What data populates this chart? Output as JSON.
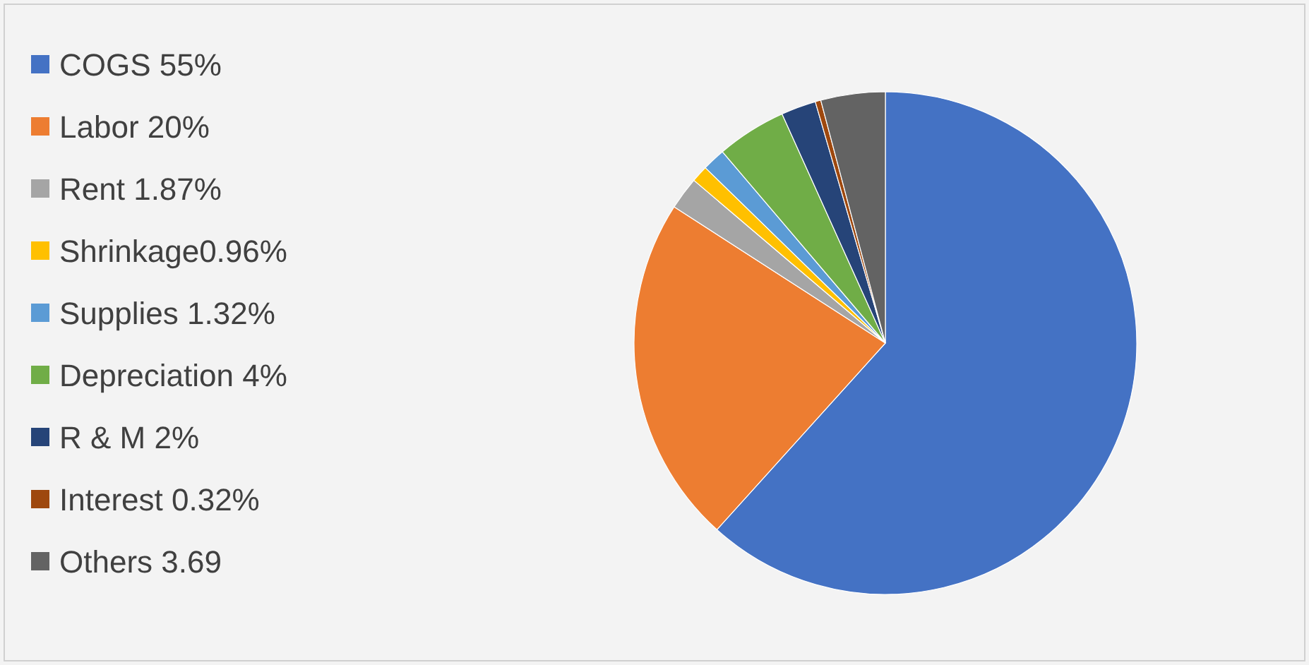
{
  "chart_data": {
    "type": "pie",
    "legend": "left",
    "categories": [
      "COGS 55%",
      "Labor 20%",
      "Rent 1.87%",
      "Shrinkage0.96%",
      "Supplies 1.32%",
      "Depreciation 4%",
      "R & M 2%",
      "Interest 0.32%",
      "Others 3.69"
    ],
    "values": [
      55,
      20,
      1.87,
      0.96,
      1.32,
      4,
      2,
      0.32,
      3.69
    ],
    "colors": [
      "#4472c4",
      "#ed7d31",
      "#a5a5a5",
      "#ffc000",
      "#5b9bd5",
      "#70ad47",
      "#264478",
      "#9e480e",
      "#636363"
    ]
  }
}
